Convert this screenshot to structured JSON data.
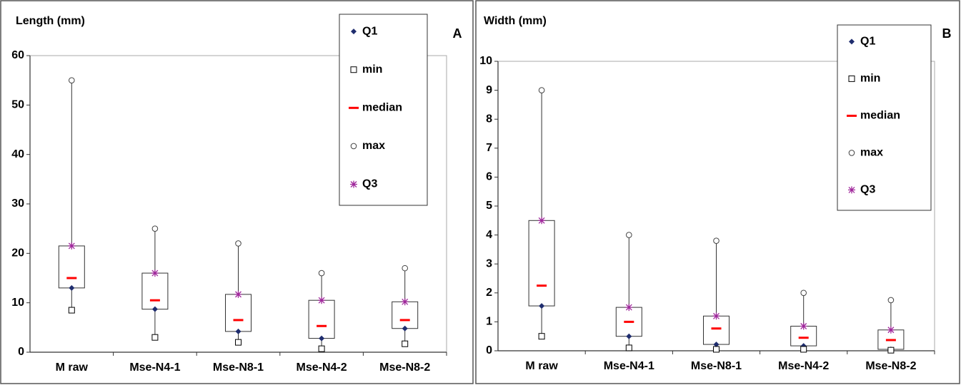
{
  "chart_data": [
    {
      "type": "box",
      "title": "Length (mm)",
      "panel_label": "A",
      "categories": [
        "M raw",
        "Mse-N4-1",
        "Mse-N8-1",
        "Mse-N4-2",
        "Mse-N8-2"
      ],
      "series": [
        {
          "name": "Q1",
          "color": "#1f2d6e",
          "marker": "diamond",
          "values": [
            13,
            8.7,
            4.2,
            2.8,
            4.8
          ]
        },
        {
          "name": "min",
          "color": "#000000",
          "marker": "square",
          "values": [
            8.5,
            3,
            2,
            0.7,
            1.7
          ]
        },
        {
          "name": "median",
          "color": "#ff0000",
          "marker": "dash",
          "values": [
            15,
            10.5,
            6.5,
            5.3,
            6.5
          ]
        },
        {
          "name": "max",
          "color": "#000000",
          "marker": "circle",
          "values": [
            55,
            25,
            22,
            16,
            17
          ]
        },
        {
          "name": "Q3",
          "color": "#a0289c",
          "marker": "star",
          "values": [
            21.5,
            16,
            11.7,
            10.5,
            10.2
          ]
        }
      ],
      "ylim": [
        0,
        60
      ],
      "yticks": [
        0,
        10,
        20,
        30,
        40,
        50,
        60
      ],
      "grid": false
    },
    {
      "type": "box",
      "title": "Width (mm)",
      "panel_label": "B",
      "categories": [
        "M raw",
        "Mse-N4-1",
        "Mse-N8-1",
        "Mse-N4-2",
        "Mse-N8-2"
      ],
      "series": [
        {
          "name": "Q1",
          "color": "#1f2d6e",
          "marker": "diamond",
          "values": [
            1.55,
            0.5,
            0.22,
            0.17,
            0.05
          ]
        },
        {
          "name": "min",
          "color": "#000000",
          "marker": "square",
          "values": [
            0.5,
            0.1,
            0.05,
            0.05,
            0.02
          ]
        },
        {
          "name": "median",
          "color": "#ff0000",
          "marker": "dash",
          "values": [
            2.25,
            1.0,
            0.77,
            0.45,
            0.37
          ]
        },
        {
          "name": "max",
          "color": "#000000",
          "marker": "circle",
          "values": [
            9,
            4,
            3.8,
            2.0,
            1.75
          ]
        },
        {
          "name": "Q3",
          "color": "#a0289c",
          "marker": "star",
          "values": [
            4.5,
            1.5,
            1.2,
            0.85,
            0.72
          ]
        }
      ],
      "ylim": [
        0,
        10
      ],
      "yticks": [
        0,
        1,
        2,
        3,
        4,
        5,
        6,
        7,
        8,
        9,
        10
      ],
      "grid": false
    }
  ]
}
